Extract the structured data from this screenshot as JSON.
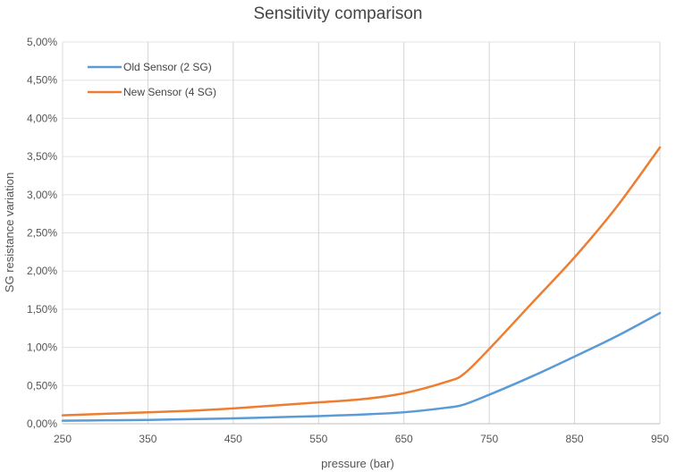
{
  "chart_data": {
    "type": "line",
    "title": "Sensitivity comparison",
    "xlabel": "pressure (bar)",
    "ylabel": "SG resistance variation",
    "xlim": [
      250,
      950
    ],
    "ylim": [
      0,
      0.05
    ],
    "x_ticks": [
      250,
      350,
      450,
      550,
      650,
      750,
      850,
      950
    ],
    "x_tick_labels": [
      "250",
      "350",
      "450",
      "550",
      "650",
      "750",
      "850",
      "950"
    ],
    "y_ticks": [
      0,
      0.005,
      0.01,
      0.015,
      0.02,
      0.025,
      0.03,
      0.035,
      0.04,
      0.045,
      0.05
    ],
    "y_tick_labels": [
      "0,00%",
      "0,50%",
      "1,00%",
      "1,50%",
      "2,00%",
      "2,50%",
      "3,00%",
      "3,50%",
      "4,00%",
      "4,50%",
      "5,00%"
    ],
    "grid": {
      "horizontal": true,
      "vertical": true
    },
    "legend_position": "top-left",
    "series": [
      {
        "name": "Old Sensor (2 SG)",
        "color": "#5b9bd5",
        "x": [
          250,
          300,
          350,
          400,
          450,
          500,
          550,
          600,
          650,
          700,
          720,
          750,
          800,
          850,
          900,
          950
        ],
        "values": [
          0.0004,
          0.00045,
          0.0005,
          0.0006,
          0.0007,
          0.00085,
          0.001,
          0.0012,
          0.0015,
          0.0021,
          0.0025,
          0.0038,
          0.0062,
          0.0088,
          0.0115,
          0.0145
        ]
      },
      {
        "name": "New Sensor (4 SG)",
        "color": "#ed7d31",
        "x": [
          250,
          300,
          350,
          400,
          450,
          500,
          550,
          600,
          650,
          700,
          720,
          750,
          800,
          850,
          900,
          950
        ],
        "values": [
          0.0011,
          0.0013,
          0.0015,
          0.0017,
          0.002,
          0.0024,
          0.0028,
          0.0032,
          0.004,
          0.0055,
          0.0065,
          0.0098,
          0.0158,
          0.0218,
          0.0285,
          0.0362
        ]
      }
    ]
  }
}
